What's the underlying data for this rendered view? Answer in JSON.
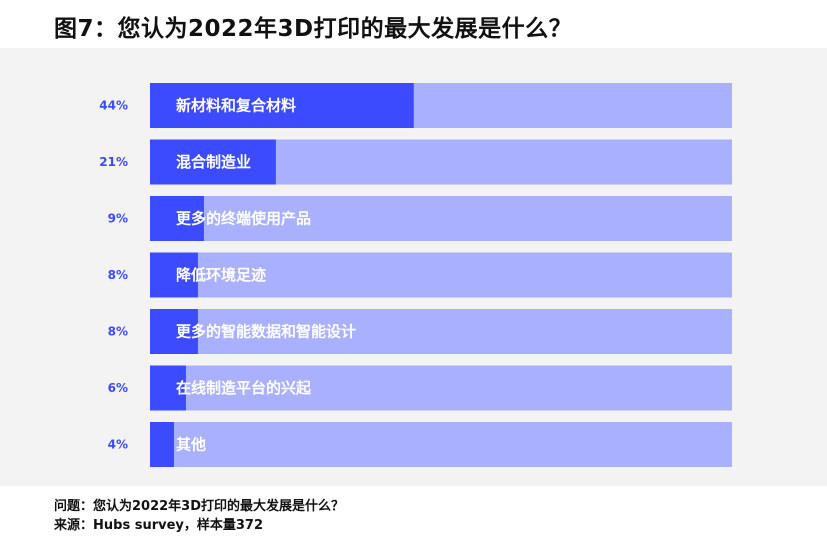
{
  "title": "图7：您认为2022年3D打印的最大发展是什么？",
  "footer": {
    "question": "问题：您认为2022年3D打印的最大发展是什么？",
    "source": "来源：Hubs survey，样本量372"
  },
  "colors": {
    "bar_fill": "#3d4bff",
    "bar_track": "#a9b0fd",
    "value_label": "#3d4bff",
    "plot_background": "#f3f3f3"
  },
  "chart_data": {
    "type": "bar",
    "orientation": "horizontal",
    "title": "图7：您认为2022年3D打印的最大发展是什么？",
    "categories": [
      "新材料和复合材料",
      "混合制造业",
      "更多的终端使用产品",
      "降低环境足迹",
      "更多的智能数据和智能设计",
      "在线制造平台的兴起",
      "其他"
    ],
    "values": [
      44,
      21,
      9,
      8,
      8,
      6,
      4
    ],
    "value_labels": [
      "44%",
      "21%",
      "9%",
      "8%",
      "8%",
      "6%",
      "4%"
    ],
    "unit": "%",
    "xlim": [
      0,
      100
    ],
    "grid": false,
    "legend": "none"
  }
}
